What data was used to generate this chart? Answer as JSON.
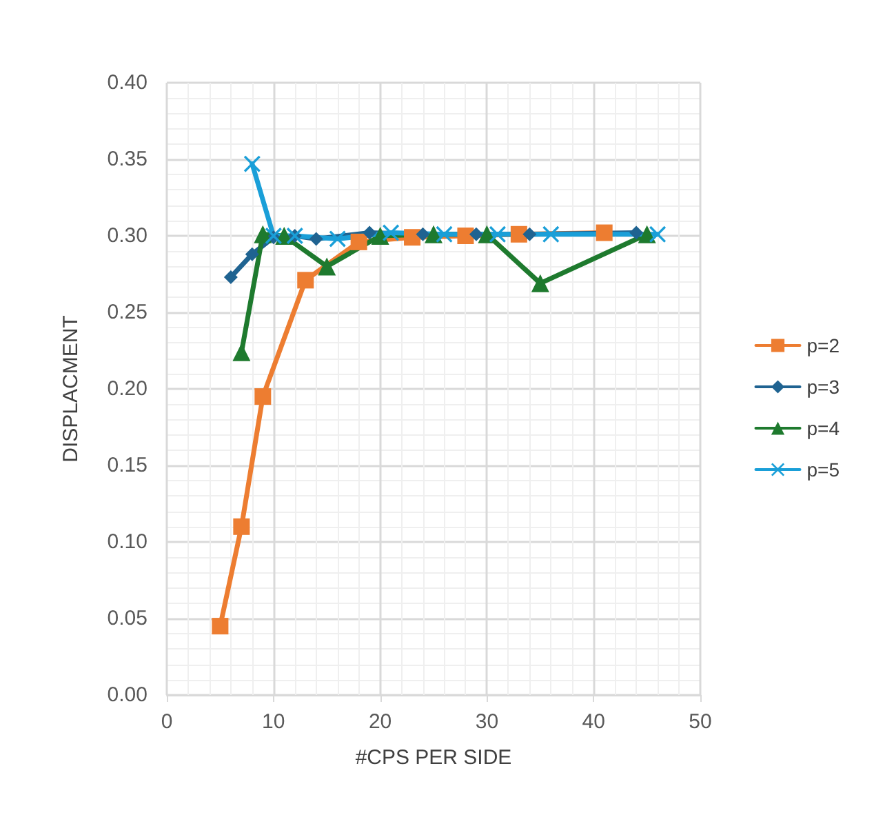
{
  "chart_data": {
    "type": "line",
    "xlabel": "#CPS PER SIDE",
    "ylabel": "DISPLACMENT",
    "xlim": [
      0,
      50
    ],
    "xticks": [
      0,
      10,
      20,
      30,
      40,
      50
    ],
    "ylim": [
      0,
      0.4
    ],
    "yticks": [
      {
        "value": 0,
        "label": "0.00"
      },
      {
        "value": 0.05,
        "label": "0.05"
      },
      {
        "value": 0.1,
        "label": "0.10"
      },
      {
        "value": 0.15,
        "label": "0.15"
      },
      {
        "value": 0.2,
        "label": "0.20"
      },
      {
        "value": 0.25,
        "label": "0.25"
      },
      {
        "value": 0.3,
        "label": "0.30"
      },
      {
        "value": 0.35,
        "label": "0.35"
      },
      {
        "value": 0.4,
        "label": "0.40"
      }
    ],
    "grid": true,
    "legend": "right",
    "line_style": "solid",
    "series": [
      {
        "name": "p=2",
        "color": "#ed7d31",
        "marker": "square",
        "x": [
          5,
          7,
          9,
          13,
          18,
          23,
          28,
          33,
          41
        ],
        "values": [
          0.045,
          0.11,
          0.195,
          0.271,
          0.296,
          0.299,
          0.3,
          0.301,
          0.302
        ]
      },
      {
        "name": "p=3",
        "color": "#1f6391",
        "marker": "diamond",
        "x": [
          6,
          8,
          10,
          12,
          14,
          19,
          24,
          29,
          34,
          44
        ],
        "values": [
          0.273,
          0.288,
          0.299,
          0.3,
          0.298,
          0.302,
          0.301,
          0.301,
          0.301,
          0.302
        ]
      },
      {
        "name": "p=4",
        "color": "#1e7a2e",
        "marker": "triangle",
        "x": [
          7,
          9,
          11,
          15,
          20,
          25,
          30,
          35,
          45
        ],
        "values": [
          0.224,
          0.301,
          0.3,
          0.28,
          0.3,
          0.301,
          0.301,
          0.269,
          0.301
        ]
      },
      {
        "name": "p=5",
        "color": "#1a9fd8",
        "marker": "cross",
        "x": [
          8,
          10,
          12,
          16,
          21,
          26,
          31,
          36,
          46
        ],
        "values": [
          0.347,
          0.3,
          0.3,
          0.298,
          0.302,
          0.301,
          0.301,
          0.301,
          0.301
        ]
      }
    ]
  }
}
